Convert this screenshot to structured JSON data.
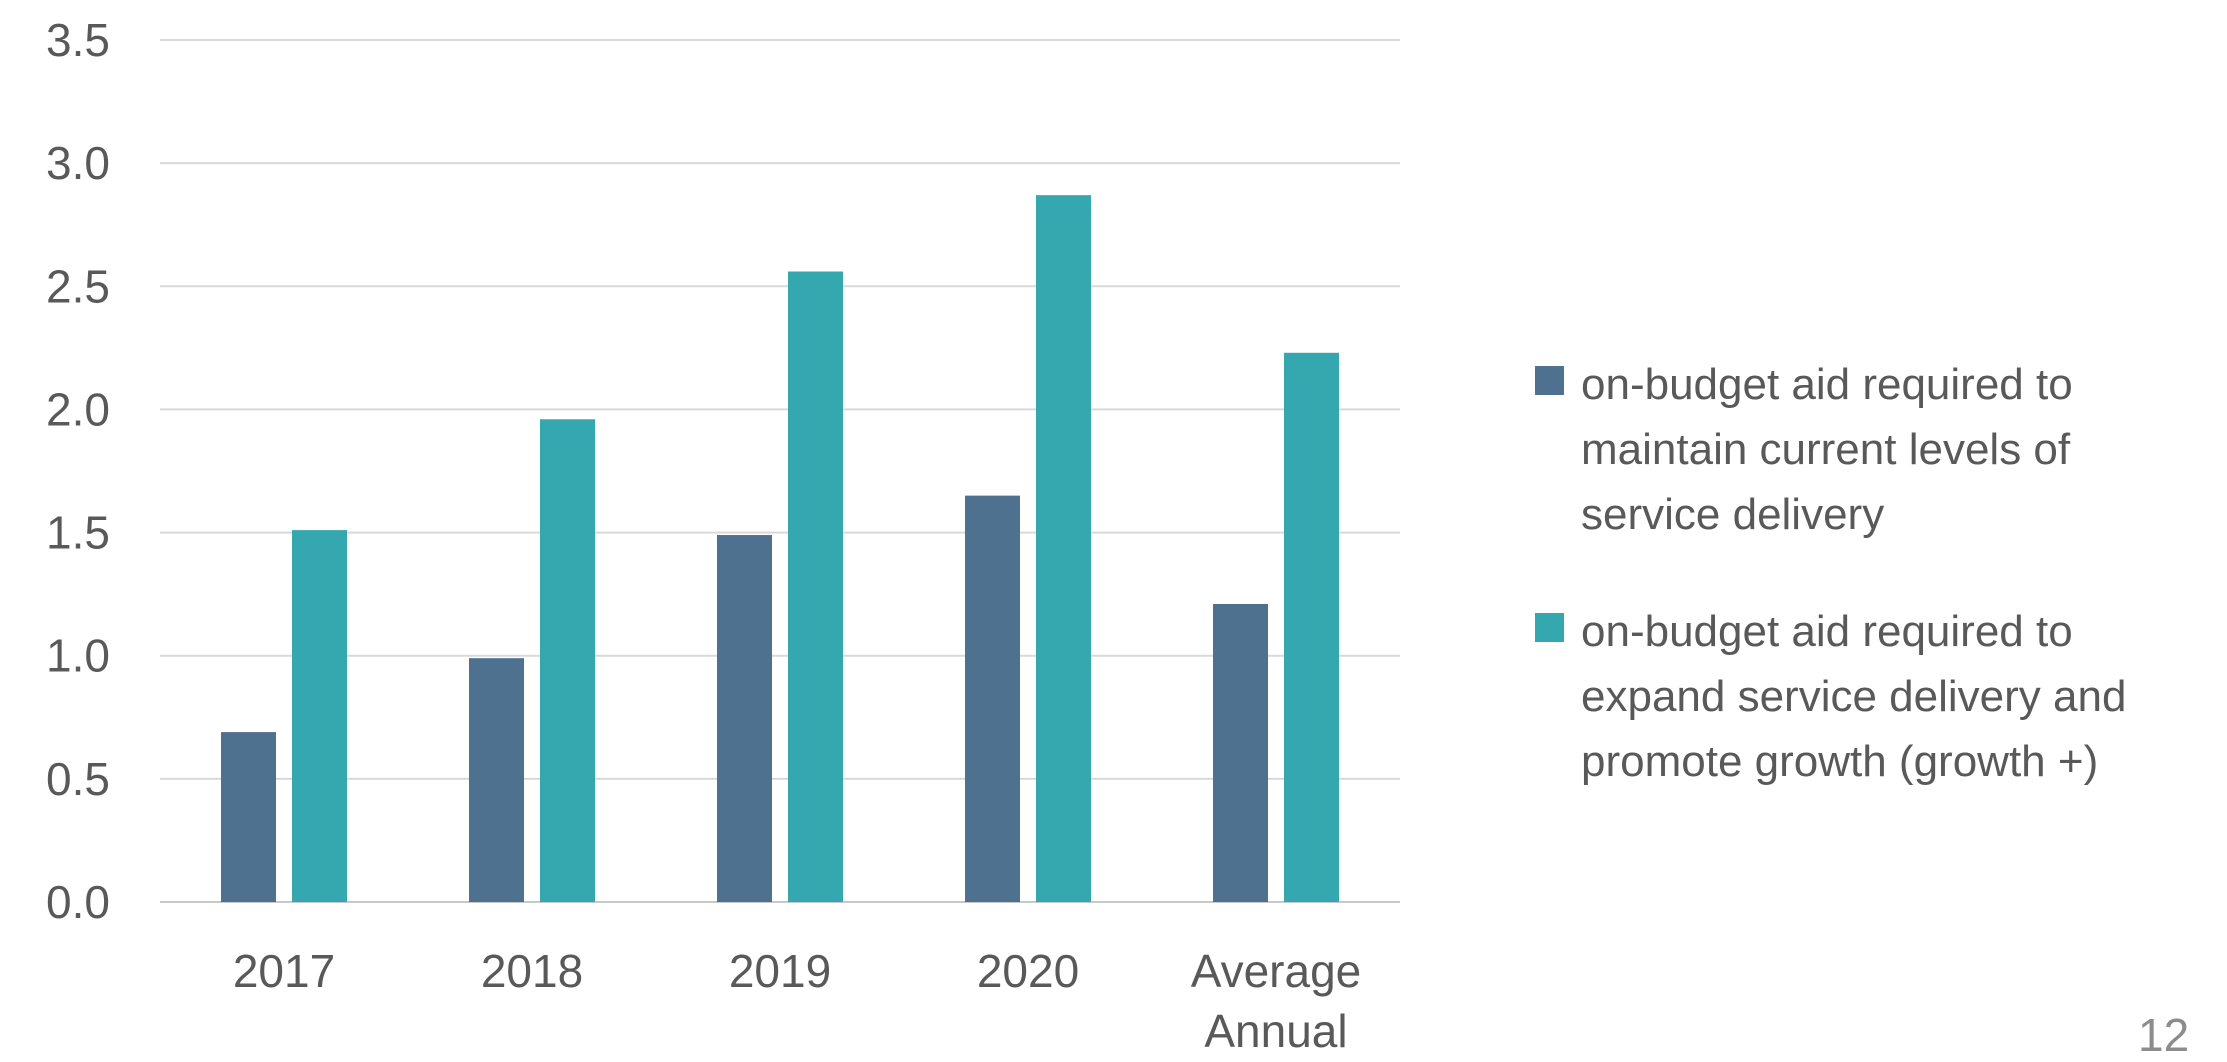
{
  "chart_data": {
    "type": "bar",
    "categories": [
      "2017",
      "2018",
      "2019",
      "2020",
      "Average Annual"
    ],
    "series": [
      {
        "name": "on-budget aid required to maintain current levels of service delivery",
        "values": [
          0.69,
          0.99,
          1.49,
          1.65,
          1.21
        ],
        "color": "#4f7190"
      },
      {
        "name": "on-budget aid required to expand service delivery and promote growth (growth +)",
        "values": [
          1.51,
          1.96,
          2.56,
          2.87,
          2.23
        ],
        "color": "#34a8ae"
      }
    ],
    "ylim": [
      0,
      3.5
    ],
    "yticks": [
      "0.0",
      "0.5",
      "1.0",
      "1.5",
      "2.0",
      "2.5",
      "3.0",
      "3.5"
    ],
    "grid": true,
    "legend_position": "right",
    "title": "",
    "xlabel": "",
    "ylabel": ""
  },
  "page_number": "12"
}
